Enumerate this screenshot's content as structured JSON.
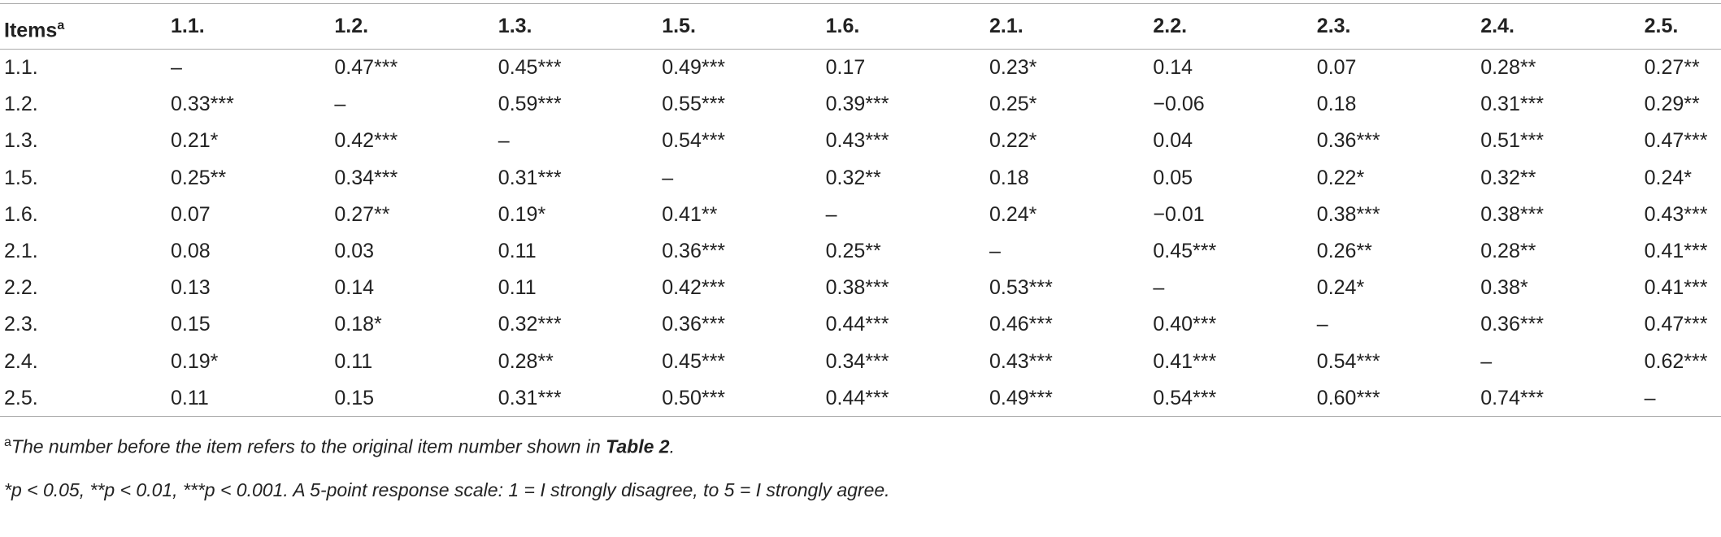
{
  "table": {
    "header": [
      "Items",
      "1.1.",
      "1.2.",
      "1.3.",
      "1.5.",
      "1.6.",
      "2.1.",
      "2.2.",
      "2.3.",
      "2.4.",
      "2.5."
    ],
    "header_marker": "a",
    "rows": [
      [
        "1.1.",
        "–",
        "0.47***",
        "0.45***",
        "0.49***",
        "0.17",
        "0.23*",
        "0.14",
        "0.07",
        "0.28**",
        "0.27**"
      ],
      [
        "1.2.",
        "0.33***",
        "–",
        "0.59***",
        "0.55***",
        "0.39***",
        "0.25*",
        "−0.06",
        "0.18",
        "0.31***",
        "0.29**"
      ],
      [
        "1.3.",
        "0.21*",
        "0.42***",
        "–",
        "0.54***",
        "0.43***",
        "0.22*",
        "0.04",
        "0.36***",
        "0.51***",
        "0.47***"
      ],
      [
        "1.5.",
        "0.25**",
        "0.34***",
        "0.31***",
        "–",
        "0.32**",
        "0.18",
        "0.05",
        "0.22*",
        "0.32**",
        "0.24*"
      ],
      [
        "1.6.",
        "0.07",
        "0.27**",
        "0.19*",
        "0.41**",
        "–",
        "0.24*",
        "−0.01",
        "0.38***",
        "0.38***",
        "0.43***"
      ],
      [
        "2.1.",
        "0.08",
        "0.03",
        "0.11",
        "0.36***",
        "0.25**",
        "–",
        "0.45***",
        "0.26**",
        "0.28**",
        "0.41***"
      ],
      [
        "2.2.",
        "0.13",
        "0.14",
        "0.11",
        "0.42***",
        "0.38***",
        "0.53***",
        "–",
        "0.24*",
        "0.38*",
        "0.41***"
      ],
      [
        "2.3.",
        "0.15",
        "0.18*",
        "0.32***",
        "0.36***",
        "0.44***",
        "0.46***",
        "0.40***",
        "–",
        "0.36***",
        "0.47***"
      ],
      [
        "2.4.",
        "0.19*",
        "0.11",
        "0.28**",
        "0.45***",
        "0.34***",
        "0.43***",
        "0.41***",
        "0.54***",
        "–",
        "0.62***"
      ],
      [
        "2.5.",
        "0.11",
        "0.15",
        "0.31***",
        "0.50***",
        "0.44***",
        "0.49***",
        "0.54***",
        "0.60***",
        "0.74***",
        "–"
      ]
    ]
  },
  "notes": [
    {
      "marker": "a",
      "text": "The number before the item refers to the original item number shown in ",
      "bold": "Table 2",
      "end": "."
    },
    {
      "text": "*p < 0.05, **p < 0.01, ***p < 0.001. A 5-point response scale: 1 = I strongly disagree, to 5 = I strongly agree."
    }
  ]
}
